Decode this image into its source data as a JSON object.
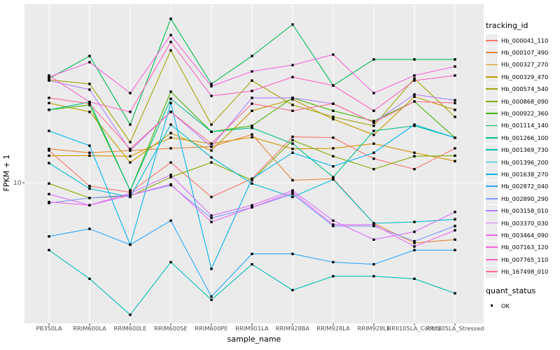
{
  "chart_data": {
    "type": "line",
    "title": "",
    "xlabel": "sample_name",
    "ylabel": "FPKM + 1",
    "y_scale": "log10",
    "y_tick_labels": [
      "10"
    ],
    "y_tick_values": [
      10
    ],
    "grid": "major-on",
    "panel_bg": "#EBEBEB",
    "grid_color": "#FFFFFF",
    "marker": "black-square",
    "legend_position": "right",
    "categories": [
      "PB350LA",
      "RRIM600LA",
      "RRIM600LE",
      "RRIM600SE",
      "RRIM600PE",
      "RRIM901LA",
      "RRIM928BA",
      "RRIM928LA",
      "RRIM928LE",
      "RRII105LA_Control",
      "RRII105LA_Stressed"
    ],
    "series": [
      {
        "name": "Hb_000041_110",
        "color": "#F8766D",
        "values": [
          14.8,
          9.6,
          8.9,
          12.8,
          8.4,
          10.5,
          17.5,
          17.3,
          13.4,
          11.8,
          15.2
        ]
      },
      {
        "name": "Hb_000107_490",
        "color": "#EA8331",
        "values": [
          15.1,
          14.4,
          14.8,
          15.2,
          15.5,
          18.0,
          10.3,
          10.5,
          6.1,
          4.8,
          5.0
        ]
      },
      {
        "name": "Hb_000327_270",
        "color": "#D89200",
        "values": [
          13.9,
          13.9,
          13.8,
          17.3,
          16.1,
          17.4,
          15.1,
          15.2,
          16.1,
          14.4,
          13.0
        ]
      },
      {
        "name": "Hb_000329_470",
        "color": "#C09B00",
        "values": [
          26.4,
          23.7,
          12.8,
          18.3,
          14.8,
          24.0,
          27.6,
          21.7,
          17.9,
          28.5,
          24.3
        ]
      },
      {
        "name": "Hb_000574_540",
        "color": "#A3A500",
        "values": [
          35.0,
          33.3,
          16.4,
          50.1,
          20.3,
          34.7,
          25.8,
          22.3,
          20.0,
          35.6,
          22.3
        ]
      },
      {
        "name": "Hb_000868_090",
        "color": "#7FAC00",
        "values": [
          9.9,
          8.3,
          8.5,
          10.7,
          12.8,
          10.3,
          16.8,
          13.8,
          11.8,
          13.8,
          13.9
        ]
      },
      {
        "name": "Hb_000922_360",
        "color": "#45B500",
        "values": [
          24.3,
          25.8,
          9.1,
          30.3,
          18.6,
          20.0,
          28.1,
          24.0,
          21.2,
          26.9,
          17.3
        ]
      },
      {
        "name": "Hb_001114_140",
        "color": "#00BC51",
        "values": [
          35.6,
          46.8,
          20.3,
          73.6,
          33.3,
          46.8,
          68.7,
          32.7,
          44.9,
          44.9,
          44.9
        ]
      },
      {
        "name": "Hb_001266_100",
        "color": "#00C08A",
        "values": [
          24.3,
          26.7,
          9.1,
          27.8,
          18.6,
          19.5,
          16.1,
          10.7,
          18.8,
          20.0,
          17.3
        ]
      },
      {
        "name": "Hb_001369_730",
        "color": "#00C0B4",
        "values": [
          4.4,
          3.1,
          2.0,
          3.8,
          2.4,
          3.7,
          2.7,
          3.2,
          3.2,
          3.1,
          2.6
        ]
      },
      {
        "name": "Hb_001396_200",
        "color": "#00BDD4",
        "values": [
          12.7,
          9.3,
          8.4,
          20.3,
          13.6,
          9.9,
          8.4,
          10.4,
          6.1,
          6.2,
          6.4
        ]
      },
      {
        "name": "Hb_001638_270",
        "color": "#00B5EC",
        "values": [
          18.8,
          15.7,
          4.7,
          26.4,
          3.5,
          10.5,
          14.4,
          12.2,
          14.4,
          20.3,
          17.3
        ]
      },
      {
        "name": "Hb_002872_040",
        "color": "#26A8FF",
        "values": [
          5.2,
          5.7,
          4.7,
          6.3,
          2.5,
          4.2,
          4.2,
          3.8,
          3.7,
          4.4,
          4.4
        ]
      },
      {
        "name": "Hb_002890_290",
        "color": "#7F96FF",
        "values": [
          7.8,
          8.3,
          8.6,
          9.7,
          6.5,
          7.4,
          8.7,
          5.9,
          5.9,
          4.9,
          5.9
        ]
      },
      {
        "name": "Hb_003158_010",
        "color": "#B07FFF",
        "values": [
          34.7,
          31.1,
          14.8,
          23.7,
          15.5,
          28.1,
          28.1,
          26.2,
          20.8,
          29.3,
          27.3
        ]
      },
      {
        "name": "Hb_003370_030",
        "color": "#D570FB",
        "values": [
          8.7,
          7.6,
          8.8,
          11.0,
          6.7,
          7.6,
          9.1,
          6.3,
          5.0,
          5.5,
          7.0
        ]
      },
      {
        "name": "Hb_003464_090",
        "color": "#EC67F0",
        "values": [
          7.9,
          7.6,
          8.6,
          9.8,
          6.2,
          7.4,
          8.9,
          6.0,
          6.0,
          4.6,
          5.6
        ]
      },
      {
        "name": "Hb_007163_120",
        "color": "#F961DC",
        "values": [
          36.2,
          43.4,
          29.8,
          60.4,
          32.4,
          38.8,
          41.9,
          47.6,
          29.8,
          36.9,
          41.2
        ]
      },
      {
        "name": "Hb_007765_110",
        "color": "#FF62BF",
        "values": [
          36.9,
          26.7,
          23.7,
          55.5,
          28.8,
          30.6,
          36.2,
          32.7,
          24.0,
          34.7,
          36.9
        ]
      },
      {
        "name": "Hb_167498_010",
        "color": "#FF6C91",
        "values": [
          28.1,
          26.2,
          15.1,
          23.7,
          16.1,
          26.2,
          24.0,
          26.2,
          20.8,
          26.9,
          26.4
        ]
      }
    ]
  },
  "legend": {
    "tracking_title": "tracking_id",
    "quant_title": "quant_status",
    "quant_items": [
      {
        "label": "OK",
        "marker_color": "#000000"
      }
    ]
  }
}
